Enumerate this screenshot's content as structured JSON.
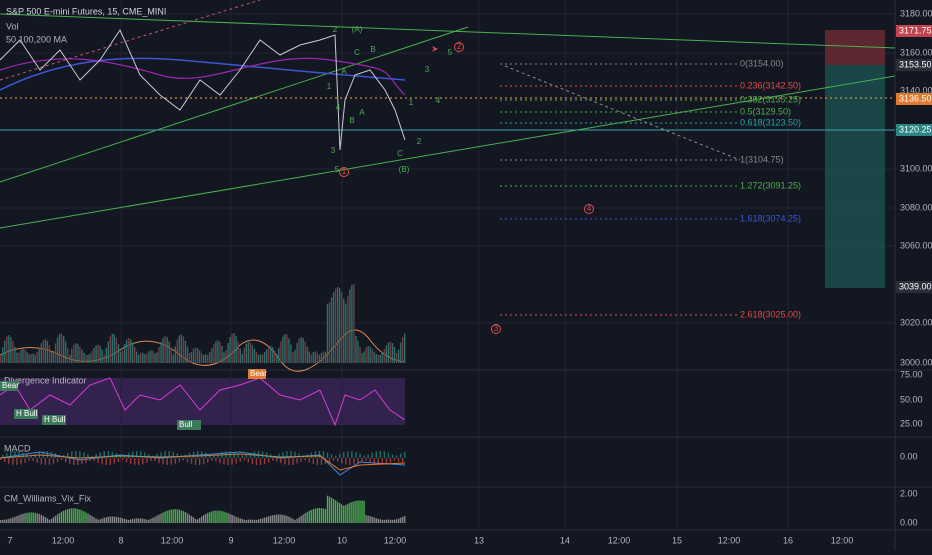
{
  "header": {
    "title": "S&P 500 E-mini Futures, 15, CME_MINI",
    "vol": "Vol",
    "ma": "50,100,200 MA"
  },
  "price_axis": {
    "ticks": [
      "3180.00",
      "3160.00",
      "3140.00",
      "3100.00",
      "3080.00",
      "3060.00",
      "3020.00",
      "3000.00"
    ],
    "badges": [
      "3171.75",
      "3153.50",
      "3136.50",
      "3120.25",
      "3039.00"
    ]
  },
  "fib_levels": [
    "0(3154.00)",
    "0.236(3142.50)",
    "0.382(3135.25)",
    "0.5(3129.50)",
    "0.618(3123.50)",
    "1(3104.75)",
    "1.272(3091.25)",
    "1.618(3074.25)",
    "2.618(3025.00)"
  ],
  "wave_labels": [
    "2",
    "(A)",
    "C",
    "B",
    "A",
    "3",
    "1",
    "4",
    "B",
    "A",
    "1",
    "4",
    "2",
    "3",
    "5",
    "C",
    "(B)",
    "1",
    "2",
    "4",
    "3",
    "5"
  ],
  "divergence": {
    "title": "Divergence Indicator",
    "ticks": [
      "75.00",
      "50.00",
      "25.00"
    ],
    "labels": [
      "Bear",
      "Bear",
      "H Bull",
      "H Bull",
      "Bull"
    ]
  },
  "macd": {
    "title": "MACD",
    "ticks": [
      "0.00"
    ]
  },
  "vix": {
    "title": "CM_Williams_Vix_Fix",
    "ticks": [
      "2.00",
      "0.00"
    ]
  },
  "time_axis": [
    "7",
    "12:00",
    "8",
    "12:00",
    "9",
    "12:00",
    "10",
    "12:00",
    "13",
    "14",
    "12:00",
    "15",
    "12:00",
    "16",
    "12:00"
  ]
}
